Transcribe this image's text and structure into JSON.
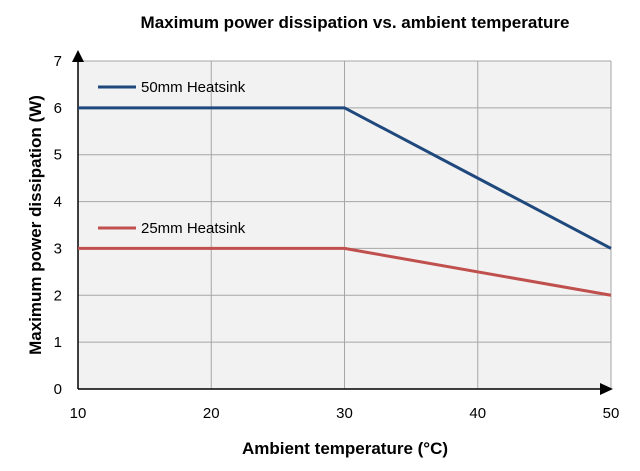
{
  "chart_data": {
    "type": "line",
    "title": "Maximum power dissipation vs. ambient temperature",
    "xlabel": "Ambient temperature (°C)",
    "ylabel": "Maximum power dissipation (W)",
    "xlim": [
      10,
      50
    ],
    "ylim": [
      0,
      7
    ],
    "x_ticks": [
      "10",
      "20",
      "30",
      "40",
      "50"
    ],
    "y_ticks": [
      "0",
      "1",
      "2",
      "3",
      "4",
      "5",
      "6",
      "7"
    ],
    "grid": true,
    "series": [
      {
        "name": "50mm Heatsink",
        "color": "#1f497d",
        "x": [
          10,
          30,
          50
        ],
        "y": [
          6,
          6,
          3
        ]
      },
      {
        "name": "25mm Heatsink",
        "color": "#c0504d",
        "x": [
          10,
          30,
          50
        ],
        "y": [
          3,
          3,
          2
        ]
      }
    ]
  }
}
